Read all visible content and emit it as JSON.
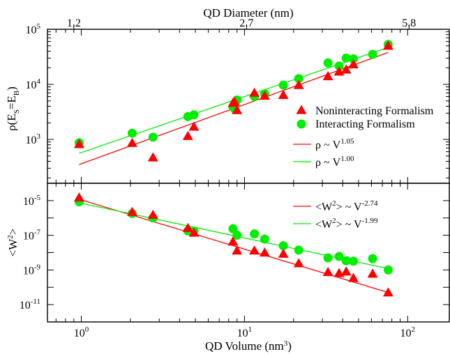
{
  "chart_data": [
    {
      "type": "scatter",
      "panel": "top",
      "xscale": "log",
      "yscale": "log",
      "xlim": [
        0.62,
        180
      ],
      "ylim": [
        160,
        100000
      ],
      "xlabel": "QD Volume (nm3)",
      "top_axis_label": "QD Diameter (nm)",
      "top_ticks": [
        {
          "label": "1.2",
          "volume": 0.9
        },
        {
          "label": "2.7",
          "volume": 10.3
        },
        {
          "label": "5.8",
          "volume": 102
        }
      ],
      "ylabel": "ρ(ES=EB)",
      "yticks": [
        {
          "value": 1000,
          "base": "10",
          "exp": "3"
        },
        {
          "value": 10000,
          "base": "10",
          "exp": "4"
        },
        {
          "value": 100000,
          "base": "10",
          "exp": "5"
        }
      ],
      "legend_position": "bottom-right",
      "series": [
        {
          "name": "Noninteracting Formalism",
          "marker": "triangle",
          "color": "#ff0000",
          "x": [
            0.97,
            2.05,
            2.75,
            4.5,
            4.9,
            8.5,
            8.7,
            9.0,
            11.5,
            13.3,
            17.3,
            21.5,
            32.5,
            38.0,
            42.0,
            46.5,
            76.0
          ],
          "y": [
            820,
            860,
            470,
            1150,
            1700,
            4600,
            4800,
            3400,
            7000,
            6200,
            6400,
            9700,
            14000,
            17000,
            18500,
            23000,
            50000
          ]
        },
        {
          "name": "Interacting Formalism",
          "marker": "circle",
          "color": "#00ee00",
          "x": [
            0.97,
            2.05,
            2.75,
            4.5,
            4.9,
            8.5,
            8.7,
            9.0,
            11.5,
            13.3,
            17.3,
            21.5,
            32.5,
            38.0,
            42.0,
            46.5,
            61.0,
            76.0
          ],
          "y": [
            870,
            1300,
            1100,
            2600,
            2800,
            3900,
            3600,
            5200,
            6000,
            6700,
            9700,
            12700,
            24500,
            21500,
            30000,
            29000,
            35000,
            53000
          ]
        }
      ],
      "fits": [
        {
          "name": "ρ ~ V1.05",
          "base": "ρ ~ V",
          "exp": "1.05",
          "color": "#ff0000",
          "x": [
            0.97,
            76.0
          ],
          "y": [
            350,
            38000
          ]
        },
        {
          "name": "ρ ~ V1.00",
          "base": "ρ ~ V",
          "exp": "1.00",
          "color": "#00ee00",
          "x": [
            0.97,
            76.0
          ],
          "y": [
            560,
            47000
          ]
        }
      ]
    },
    {
      "type": "scatter",
      "panel": "bottom",
      "xscale": "log",
      "yscale": "log",
      "xlim": [
        0.62,
        180
      ],
      "ylim": [
        1e-12,
        0.0001
      ],
      "xticks": [
        {
          "value": 1,
          "base": "10",
          "exp": "0"
        },
        {
          "value": 10,
          "base": "10",
          "exp": "1"
        },
        {
          "value": 100,
          "base": "10",
          "exp": "2"
        }
      ],
      "ylabel": "<W2>",
      "yticks": [
        {
          "value": 1e-11,
          "base": "10",
          "exp": "-11"
        },
        {
          "value": 1e-09,
          "base": "10",
          "exp": "-9"
        },
        {
          "value": 1e-07,
          "base": "10",
          "exp": "-7"
        },
        {
          "value": 1e-05,
          "base": "10",
          "exp": "-5"
        }
      ],
      "legend_position": "top-right",
      "series": [
        {
          "name": "Noninteracting Formalism",
          "marker": "triangle",
          "color": "#ff0000",
          "x": [
            0.97,
            2.05,
            2.75,
            4.5,
            4.9,
            8.5,
            9.0,
            11.5,
            13.3,
            17.3,
            21.5,
            32.5,
            38.0,
            42.0,
            46.5,
            61.0,
            76.0
          ],
          "y": [
            1.5e-05,
            2.2e-06,
            1.5e-06,
            2.6e-07,
            1.4e-07,
            4.3e-08,
            1.3e-08,
            1.3e-08,
            1e-08,
            8.5e-09,
            2.4e-09,
            7.5e-10,
            6.5e-10,
            8e-10,
            3.4e-10,
            6e-10,
            5e-11
          ]
        },
        {
          "name": "Interacting Formalism",
          "marker": "circle",
          "color": "#00ee00",
          "x": [
            0.97,
            2.05,
            2.75,
            4.5,
            4.9,
            8.5,
            9.0,
            11.5,
            13.3,
            17.3,
            21.5,
            32.5,
            38.0,
            42.0,
            46.5,
            61.0,
            76.0
          ],
          "y": [
            8.5e-06,
            1.8e-06,
            1e-06,
            1.8e-07,
            1.7e-07,
            2.4e-07,
            1e-07,
            1.2e-07,
            6e-08,
            2.5e-08,
            1.4e-08,
            5e-09,
            6e-09,
            3.4e-09,
            3.2e-09,
            4.5e-09,
            1e-09
          ]
        }
      ],
      "fits": [
        {
          "name": "<W2> ~ V-2.74",
          "base": "<W",
          "sup1": "2",
          "mid": "> ~ V",
          "exp": "-2.74",
          "color": "#ff0000",
          "x": [
            0.97,
            76.0
          ],
          "y": [
            1.2e-05,
            5e-11
          ]
        },
        {
          "name": "<W2> ~ V-1.99",
          "base": "<W",
          "sup1": "2",
          "mid": "> ~ V",
          "exp": "-1.99",
          "color": "#00ee00",
          "x": [
            0.97,
            76.0
          ],
          "y": [
            7.5e-06,
            1.2e-09
          ]
        }
      ]
    }
  ]
}
